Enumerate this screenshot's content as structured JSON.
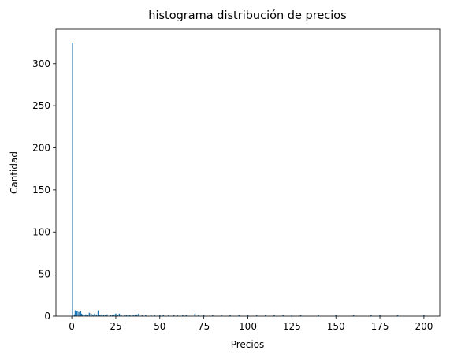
{
  "chart_data": {
    "type": "bar",
    "title": "histograma distribución de precios",
    "xlabel": "Precios",
    "ylabel": "Cantidad",
    "xlim": [
      -9,
      209
    ],
    "ylim": [
      0,
      341
    ],
    "xticks": [
      0,
      25,
      50,
      75,
      100,
      125,
      150,
      175,
      200
    ],
    "yticks": [
      0,
      50,
      100,
      150,
      200,
      250,
      300
    ],
    "grid": false,
    "bar_color": "#1f77b4",
    "bin_width": 0.7,
    "x": [
      0.5,
      1.5,
      2.0,
      2.5,
      3.0,
      4.0,
      5.0,
      5.5,
      6.0,
      7.0,
      8.0,
      9.0,
      10.0,
      11.0,
      12.0,
      13.0,
      14.0,
      15.0,
      16.0,
      17.0,
      18.0,
      19.0,
      20.0,
      22.0,
      23.0,
      24.0,
      25.0,
      26.0,
      27.0,
      28.0,
      30.0,
      31.0,
      32.0,
      33.0,
      35.0,
      36.0,
      37.0,
      38.0,
      40.0,
      42.0,
      45.0,
      47.0,
      50.0,
      52.0,
      55.0,
      58.0,
      60.0,
      63.0,
      65.0,
      70.0,
      72.0,
      75.0,
      80.0,
      85.0,
      90.0,
      95.0,
      100.0,
      105.0,
      110.0,
      115.0,
      120.0,
      125.0,
      130.0,
      140.0,
      150.0,
      160.0,
      170.0,
      175.0,
      185.0,
      200.0
    ],
    "values": [
      325,
      2,
      7,
      4,
      6,
      5,
      6,
      3,
      2,
      1,
      2,
      1,
      4,
      3,
      2,
      3,
      2,
      7,
      1,
      2,
      1,
      1,
      2,
      1,
      1,
      2,
      3,
      1,
      3,
      1,
      1,
      1,
      1,
      1,
      1,
      1,
      2,
      3,
      1,
      1,
      1,
      1,
      1,
      1,
      1,
      1,
      1,
      1,
      1,
      3,
      1,
      1,
      1,
      1,
      1,
      1,
      1,
      1,
      1,
      1,
      1,
      1,
      1,
      1,
      1,
      1,
      1,
      1,
      1,
      1
    ]
  }
}
